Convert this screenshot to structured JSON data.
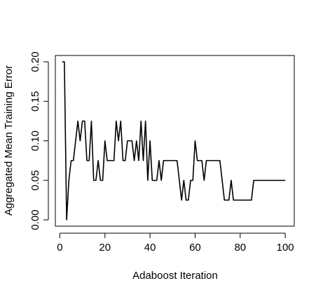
{
  "chart_data": {
    "type": "line",
    "title": "",
    "xlabel": "Adaboost Iteration",
    "ylabel": "Aggregated Mean Training Error",
    "xlim": [
      -2,
      104
    ],
    "ylim": [
      -0.008,
      0.208
    ],
    "xticks": [
      0,
      20,
      40,
      60,
      80,
      100
    ],
    "xtick_labels": [
      "0",
      "20",
      "40",
      "60",
      "80",
      "100"
    ],
    "yticks": [
      0.0,
      0.05,
      0.1,
      0.15,
      0.2
    ],
    "ytick_labels": [
      "0.00",
      "0.05",
      "0.10",
      "0.15",
      "0.20"
    ],
    "grid": false,
    "line_color": "#000000",
    "series": [
      {
        "x": [
          1,
          2,
          3,
          4,
          5,
          6,
          7,
          8,
          9,
          10,
          11,
          12,
          13,
          14,
          15,
          16,
          17,
          18,
          19,
          20,
          21,
          22,
          23,
          24,
          25,
          26,
          27,
          28,
          29,
          30,
          31,
          32,
          33,
          34,
          35,
          36,
          37,
          38,
          39,
          40,
          41,
          42,
          43,
          44,
          45,
          46,
          47,
          48,
          49,
          50,
          51,
          52,
          53,
          54,
          55,
          56,
          57,
          58,
          59,
          60,
          61,
          62,
          63,
          64,
          65,
          66,
          67,
          68,
          69,
          70,
          71,
          72,
          73,
          74,
          75,
          76,
          77,
          78,
          79,
          80,
          81,
          82,
          83,
          84,
          85,
          86,
          87,
          88,
          89,
          90,
          91,
          92,
          93,
          94,
          95,
          96,
          97,
          98,
          99,
          100
        ],
        "y": [
          0.2,
          0.2,
          0.0,
          0.05,
          0.075,
          0.075,
          0.1,
          0.125,
          0.1,
          0.125,
          0.125,
          0.075,
          0.075,
          0.125,
          0.05,
          0.05,
          0.075,
          0.05,
          0.05,
          0.1,
          0.075,
          0.075,
          0.075,
          0.075,
          0.125,
          0.1,
          0.125,
          0.075,
          0.075,
          0.1,
          0.1,
          0.1,
          0.075,
          0.1,
          0.075,
          0.125,
          0.075,
          0.125,
          0.05,
          0.1,
          0.05,
          0.05,
          0.05,
          0.075,
          0.05,
          0.075,
          0.075,
          0.075,
          0.075,
          0.075,
          0.075,
          0.075,
          0.05,
          0.025,
          0.05,
          0.025,
          0.025,
          0.05,
          0.05,
          0.1,
          0.075,
          0.075,
          0.075,
          0.05,
          0.075,
          0.075,
          0.075,
          0.075,
          0.075,
          0.075,
          0.075,
          0.05,
          0.025,
          0.025,
          0.025,
          0.05,
          0.025,
          0.025,
          0.025,
          0.025,
          0.025,
          0.025,
          0.025,
          0.025,
          0.025,
          0.05,
          0.05,
          0.05,
          0.05,
          0.05,
          0.05,
          0.05,
          0.05,
          0.05,
          0.05,
          0.05,
          0.05,
          0.05,
          0.05,
          0.05
        ]
      }
    ]
  }
}
